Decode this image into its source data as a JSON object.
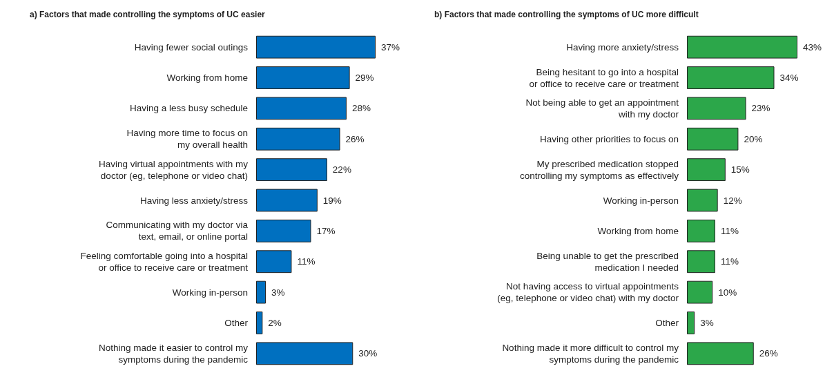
{
  "chart_data": [
    {
      "type": "bar",
      "orientation": "horizontal",
      "title": "a) Factors that made controlling the symptoms of UC easier",
      "categories": [
        "Having fewer social outings",
        "Working from home",
        "Having a less busy schedule",
        "Having more time to focus on\nmy overall health",
        "Having virtual appointments with my\ndoctor (eg, telephone or video chat)",
        "Having less anxiety/stress",
        "Communicating with my doctor via\ntext, email, or online portal",
        "Feeling comfortable going into a hospital\nor office to receive care or treatment",
        "Working in-person",
        "Other",
        "Nothing made it easier to control my\nsymptoms during the pandemic"
      ],
      "values": [
        37,
        29,
        28,
        26,
        22,
        19,
        17,
        11,
        3,
        2,
        30
      ],
      "value_labels": [
        "37%",
        "29%",
        "28%",
        "26%",
        "22%",
        "19%",
        "17%",
        "11%",
        "3%",
        "2%",
        "30%"
      ],
      "color": "#0070c0"
    },
    {
      "type": "bar",
      "orientation": "horizontal",
      "title": "b) Factors that made controlling the symptoms of UC more difficult",
      "categories": [
        "Having more anxiety/stress",
        "Being hesitant to go into a hospital\nor office to receive care or treatment",
        "Not being able to get an appointment\nwith my doctor",
        "Having other priorities to focus on",
        "My prescribed medication stopped\ncontrolling my symptoms as effectively",
        "Working in-person",
        "Working from home",
        "Being unable to get the prescribed\nmedication I needed",
        "Not having access to virtual appointments\n(eg, telephone or video chat) with my doctor",
        "Other",
        "Nothing made it more difficult to control my\nsymptoms during the pandemic"
      ],
      "values": [
        43,
        34,
        23,
        20,
        15,
        12,
        11,
        11,
        10,
        3,
        26
      ],
      "value_labels": [
        "43%",
        "34%",
        "23%",
        "20%",
        "15%",
        "12%",
        "11%",
        "11%",
        "10%",
        "3%",
        "26%"
      ],
      "color": "#2ca74a"
    }
  ]
}
